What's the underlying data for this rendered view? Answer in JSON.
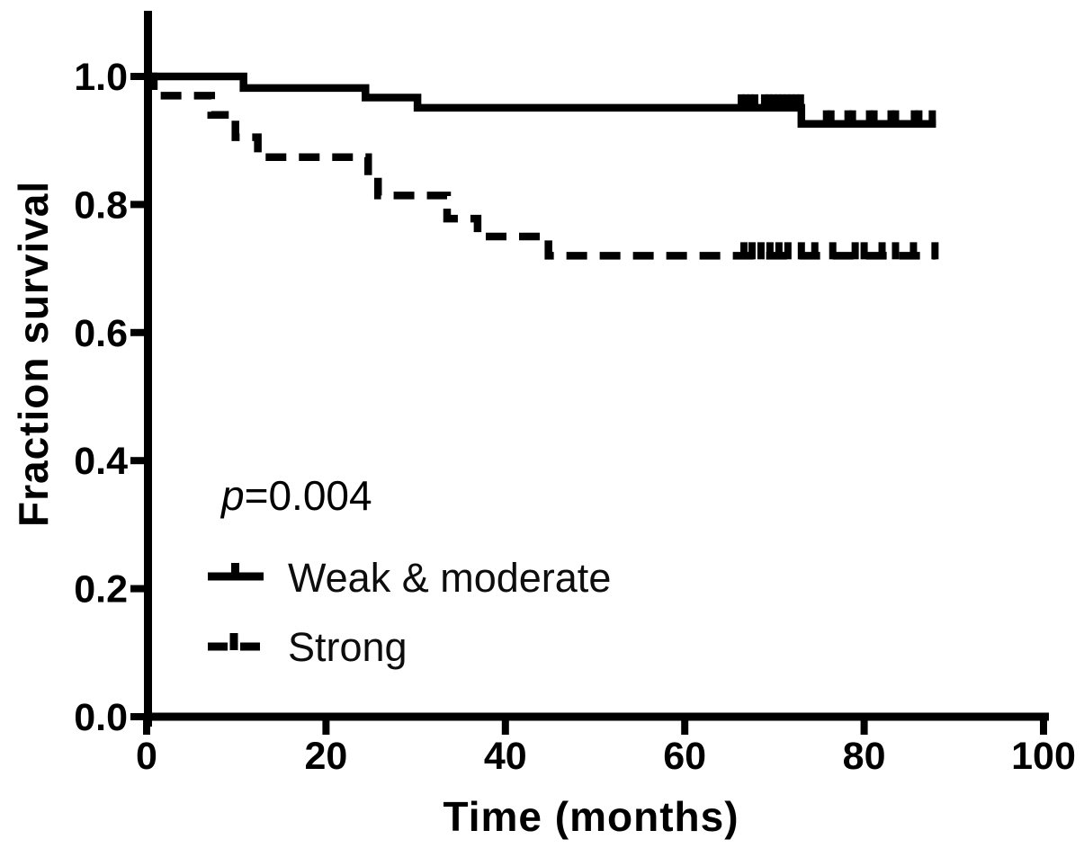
{
  "figure": {
    "background": "#ffffff",
    "ink_color": "#000000"
  },
  "chart_data": {
    "type": "line",
    "subtype": "kaplan_meier_step",
    "title": "",
    "xlabel": "Time (months)",
    "ylabel": "Fraction survival",
    "xlim": [
      0,
      100
    ],
    "ylim": [
      0.0,
      1.0
    ],
    "grid": false,
    "legend_position": "inside lower left",
    "x_ticks": [
      {
        "value": 0,
        "label": "0"
      },
      {
        "value": 20,
        "label": "20"
      },
      {
        "value": 40,
        "label": "40"
      },
      {
        "value": 60,
        "label": "60"
      },
      {
        "value": 80,
        "label": "80"
      },
      {
        "value": 100,
        "label": "100"
      }
    ],
    "y_ticks": [
      {
        "value": 1.0,
        "label": "1.0"
      },
      {
        "value": 0.8,
        "label": "0.8"
      },
      {
        "value": 0.6,
        "label": "0.6"
      },
      {
        "value": 0.4,
        "label": "0.4"
      },
      {
        "value": 0.2,
        "label": "0.2"
      },
      {
        "value": 0.0,
        "label": "0.0"
      }
    ],
    "annotation": {
      "symbol": "p",
      "rest": "=0.004",
      "full_text": "p=0.004"
    },
    "series": [
      {
        "name": "Weak & moderate",
        "line_style": "solid",
        "color": "#000000",
        "change_points": [
          [
            0,
            1.0
          ],
          [
            10.8,
            0.982
          ],
          [
            24.4,
            0.967
          ],
          [
            30.2,
            0.951
          ],
          [
            73.0,
            0.926
          ],
          [
            88,
            0.926
          ]
        ],
        "censor_marks": [
          [
            66.3,
            0.951
          ],
          [
            66.8,
            0.951
          ],
          [
            67.3,
            0.951
          ],
          [
            67.8,
            0.951
          ],
          [
            68.9,
            0.951
          ],
          [
            69.4,
            0.951
          ],
          [
            69.9,
            0.951
          ],
          [
            70.4,
            0.951
          ],
          [
            70.9,
            0.951
          ],
          [
            71.4,
            0.951
          ],
          [
            71.9,
            0.951
          ],
          [
            72.4,
            0.951
          ],
          [
            72.9,
            0.951
          ],
          [
            75.8,
            0.926
          ],
          [
            76.3,
            0.926
          ],
          [
            78.2,
            0.926
          ],
          [
            78.7,
            0.926
          ],
          [
            80.6,
            0.926
          ],
          [
            81.1,
            0.926
          ],
          [
            83.0,
            0.926
          ],
          [
            83.5,
            0.926
          ],
          [
            85.6,
            0.926
          ],
          [
            86.1,
            0.926
          ],
          [
            87.6,
            0.926
          ]
        ]
      },
      {
        "name": "Strong",
        "line_style": "dashed",
        "color": "#000000",
        "change_points": [
          [
            0,
            1.0
          ],
          [
            0.8,
            0.97
          ],
          [
            7.2,
            0.94
          ],
          [
            9.9,
            0.905
          ],
          [
            12.4,
            0.874
          ],
          [
            24.7,
            0.843
          ],
          [
            25.8,
            0.814
          ],
          [
            33.5,
            0.778
          ],
          [
            36.9,
            0.75
          ],
          [
            44.8,
            0.72
          ],
          [
            88,
            0.72
          ]
        ],
        "censor_marks": [
          [
            66.6,
            0.72
          ],
          [
            67.5,
            0.72
          ],
          [
            68.5,
            0.72
          ],
          [
            69.5,
            0.72
          ],
          [
            70.5,
            0.72
          ],
          [
            71.5,
            0.72
          ],
          [
            73.0,
            0.72
          ],
          [
            74.5,
            0.72
          ],
          [
            76.5,
            0.72
          ],
          [
            79.0,
            0.72
          ],
          [
            80.0,
            0.72
          ],
          [
            82.0,
            0.72
          ],
          [
            83.5,
            0.72
          ],
          [
            85.5,
            0.72
          ],
          [
            87.9,
            0.72
          ]
        ]
      }
    ]
  }
}
